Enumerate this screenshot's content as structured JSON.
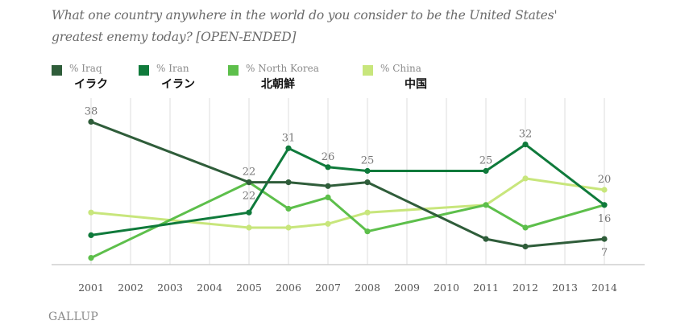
{
  "chart_data": {
    "type": "line",
    "title": "What one country anywhere in the world do you consider to be the United States' greatest enemy today? [OPEN-ENDED]",
    "xlabel": "",
    "ylabel": "",
    "ylim": [
      0,
      40
    ],
    "grid": "vertical",
    "legend_position": "top-left",
    "x": [
      "2001",
      "2002",
      "2003",
      "2004",
      "2005",
      "2006",
      "2007",
      "2008",
      "2009",
      "2010",
      "2011",
      "2012",
      "2013",
      "2014"
    ],
    "series": [
      {
        "name": "% Iraq",
        "name_ja": "イラク",
        "color": "#2f5d3a",
        "points": [
          [
            "2001",
            38
          ],
          [
            "2005",
            22
          ],
          [
            "2006",
            22
          ],
          [
            "2007",
            21
          ],
          [
            "2008",
            22
          ],
          [
            "2011",
            7
          ],
          [
            "2012",
            5
          ],
          [
            "2014",
            7
          ]
        ]
      },
      {
        "name": "% Iran",
        "name_ja": "イラン",
        "color": "#0f7a3b",
        "points": [
          [
            "2001",
            8
          ],
          [
            "2005",
            14
          ],
          [
            "2006",
            31
          ],
          [
            "2007",
            26
          ],
          [
            "2008",
            25
          ],
          [
            "2011",
            25
          ],
          [
            "2012",
            32
          ],
          [
            "2014",
            16
          ]
        ]
      },
      {
        "name": "% North Korea",
        "name_ja": "北朝鮮",
        "color": "#5dbf4b",
        "points": [
          [
            "2001",
            2
          ],
          [
            "2005",
            22
          ],
          [
            "2006",
            15
          ],
          [
            "2007",
            18
          ],
          [
            "2008",
            9
          ],
          [
            "2011",
            16
          ],
          [
            "2012",
            10
          ],
          [
            "2014",
            16
          ]
        ]
      },
      {
        "name": "% China",
        "name_ja": "中国",
        "color": "#c8e67c",
        "points": [
          [
            "2001",
            14
          ],
          [
            "2005",
            10
          ],
          [
            "2006",
            10
          ],
          [
            "2007",
            11
          ],
          [
            "2008",
            14
          ],
          [
            "2011",
            16
          ],
          [
            "2012",
            23
          ],
          [
            "2014",
            20
          ]
        ]
      }
    ],
    "data_labels": [
      {
        "series": "% Iraq",
        "x": "2001",
        "text": "38",
        "pos": "above"
      },
      {
        "series": "% Iraq",
        "x": "2005",
        "text": "22",
        "pos": "above"
      },
      {
        "series": "% North Korea",
        "x": "2005",
        "text": "22",
        "pos": "below"
      },
      {
        "series": "% Iran",
        "x": "2006",
        "text": "31",
        "pos": "above"
      },
      {
        "series": "% Iran",
        "x": "2007",
        "text": "26",
        "pos": "above"
      },
      {
        "series": "% Iran",
        "x": "2008",
        "text": "25",
        "pos": "above"
      },
      {
        "series": "% Iran",
        "x": "2011",
        "text": "25",
        "pos": "above"
      },
      {
        "series": "% Iran",
        "x": "2012",
        "text": "32",
        "pos": "above"
      },
      {
        "series": "% China",
        "x": "2014",
        "text": "20",
        "pos": "above"
      },
      {
        "series": "% Iran",
        "x": "2014",
        "text": "16",
        "pos": "below"
      },
      {
        "series": "% Iraq",
        "x": "2014",
        "text": "7",
        "pos": "below"
      }
    ]
  },
  "title_line1": "What one country anywhere in the world do you consider to be the United States'",
  "title_line2": "greatest enemy today? [OPEN-ENDED]",
  "brand": "GALLUP"
}
